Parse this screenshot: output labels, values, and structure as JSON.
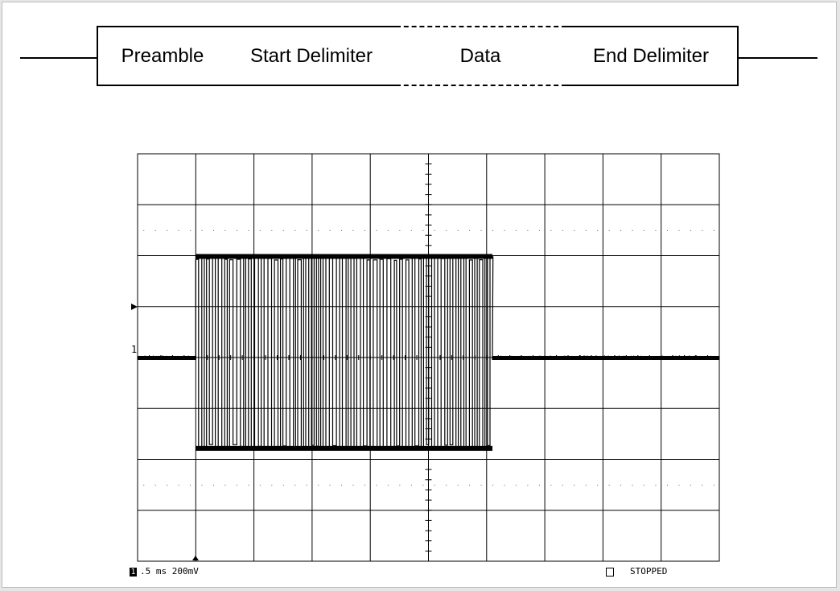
{
  "frame": {
    "fields": [
      {
        "label": "Preamble",
        "style": "solid"
      },
      {
        "label": "Start Delimiter",
        "style": "solid"
      },
      {
        "label": "Data",
        "style": "dashed"
      },
      {
        "label": "End Delimiter",
        "style": "solid"
      }
    ]
  },
  "scope": {
    "channel_marker": "1",
    "channel_number": "1",
    "timebase": ".5 ms",
    "volts_per_div": "200mV",
    "status": "STOPPED",
    "grid": {
      "h_divisions": 10,
      "v_divisions": 8
    },
    "waveform": {
      "start_div": 1.0,
      "end_div": 6.1,
      "baseline_level": 0.0,
      "high_level": 2.0,
      "low_level": -1.8
    }
  }
}
